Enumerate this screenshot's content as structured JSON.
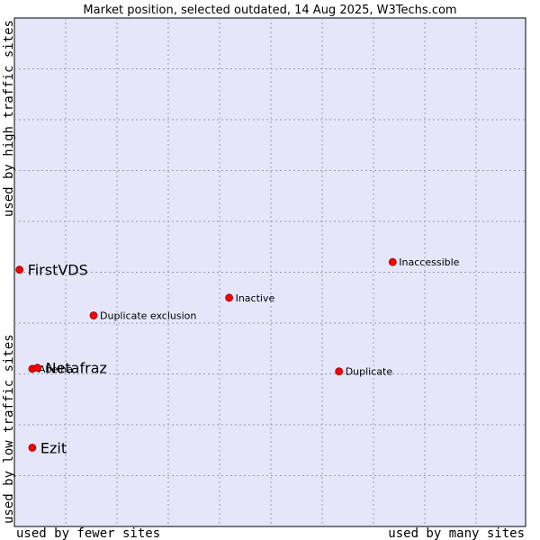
{
  "chart_data": {
    "type": "scatter",
    "title": "Market position, selected outdated, 14 Aug 2025, W3Techs.com",
    "x_axis": {
      "label_low": "used by fewer sites",
      "label_high": "used by many sites"
    },
    "y_axis": {
      "label_low": "used by low traffic sites",
      "label_high": "used by high traffic sites"
    },
    "grid": true,
    "background_color": "#e6e6fa",
    "point_color": "#ff0000",
    "points": [
      {
        "label": "FirstVDS",
        "x": 0.01,
        "y": 0.505,
        "emphasized": true
      },
      {
        "label": "Inaccessible",
        "x": 0.74,
        "y": 0.52,
        "emphasized": false
      },
      {
        "label": "Inactive",
        "x": 0.42,
        "y": 0.45,
        "emphasized": false
      },
      {
        "label": "Duplicate exclusion",
        "x": 0.155,
        "y": 0.415,
        "emphasized": false
      },
      {
        "label": "Abelha",
        "x": 0.035,
        "y": 0.31,
        "emphasized": false
      },
      {
        "label": "Netafraz",
        "x": 0.045,
        "y": 0.312,
        "emphasized": true
      },
      {
        "label": "Duplicate",
        "x": 0.635,
        "y": 0.305,
        "emphasized": false
      },
      {
        "label": "Ezit",
        "x": 0.035,
        "y": 0.155,
        "emphasized": true
      }
    ]
  }
}
